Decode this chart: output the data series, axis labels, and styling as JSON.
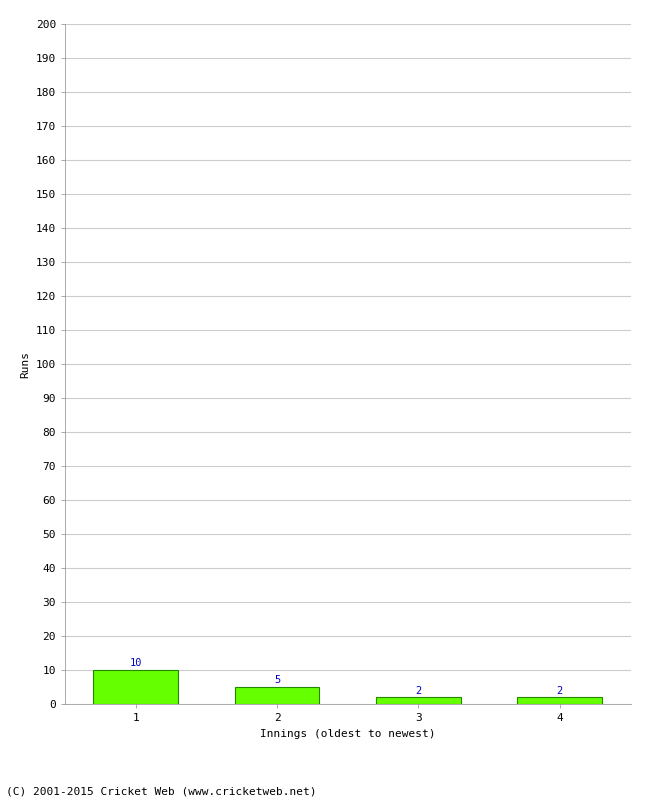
{
  "categories": [
    1,
    2,
    3,
    4
  ],
  "values": [
    10,
    5,
    2,
    2
  ],
  "bar_color": "#66ff00",
  "bar_edge_color": "#228800",
  "label_color": "#0000cc",
  "ylabel": "Runs",
  "xlabel": "Innings (oldest to newest)",
  "ylim": [
    0,
    200
  ],
  "yticks": [
    0,
    10,
    20,
    30,
    40,
    50,
    60,
    70,
    80,
    90,
    100,
    110,
    120,
    130,
    140,
    150,
    160,
    170,
    180,
    190,
    200
  ],
  "footer": "(C) 2001-2015 Cricket Web (www.cricketweb.net)",
  "background_color": "#ffffff",
  "grid_color": "#cccccc",
  "bar_width": 0.6,
  "label_fontsize": 7.5,
  "axis_label_fontsize": 8,
  "tick_fontsize": 8,
  "footer_fontsize": 8
}
